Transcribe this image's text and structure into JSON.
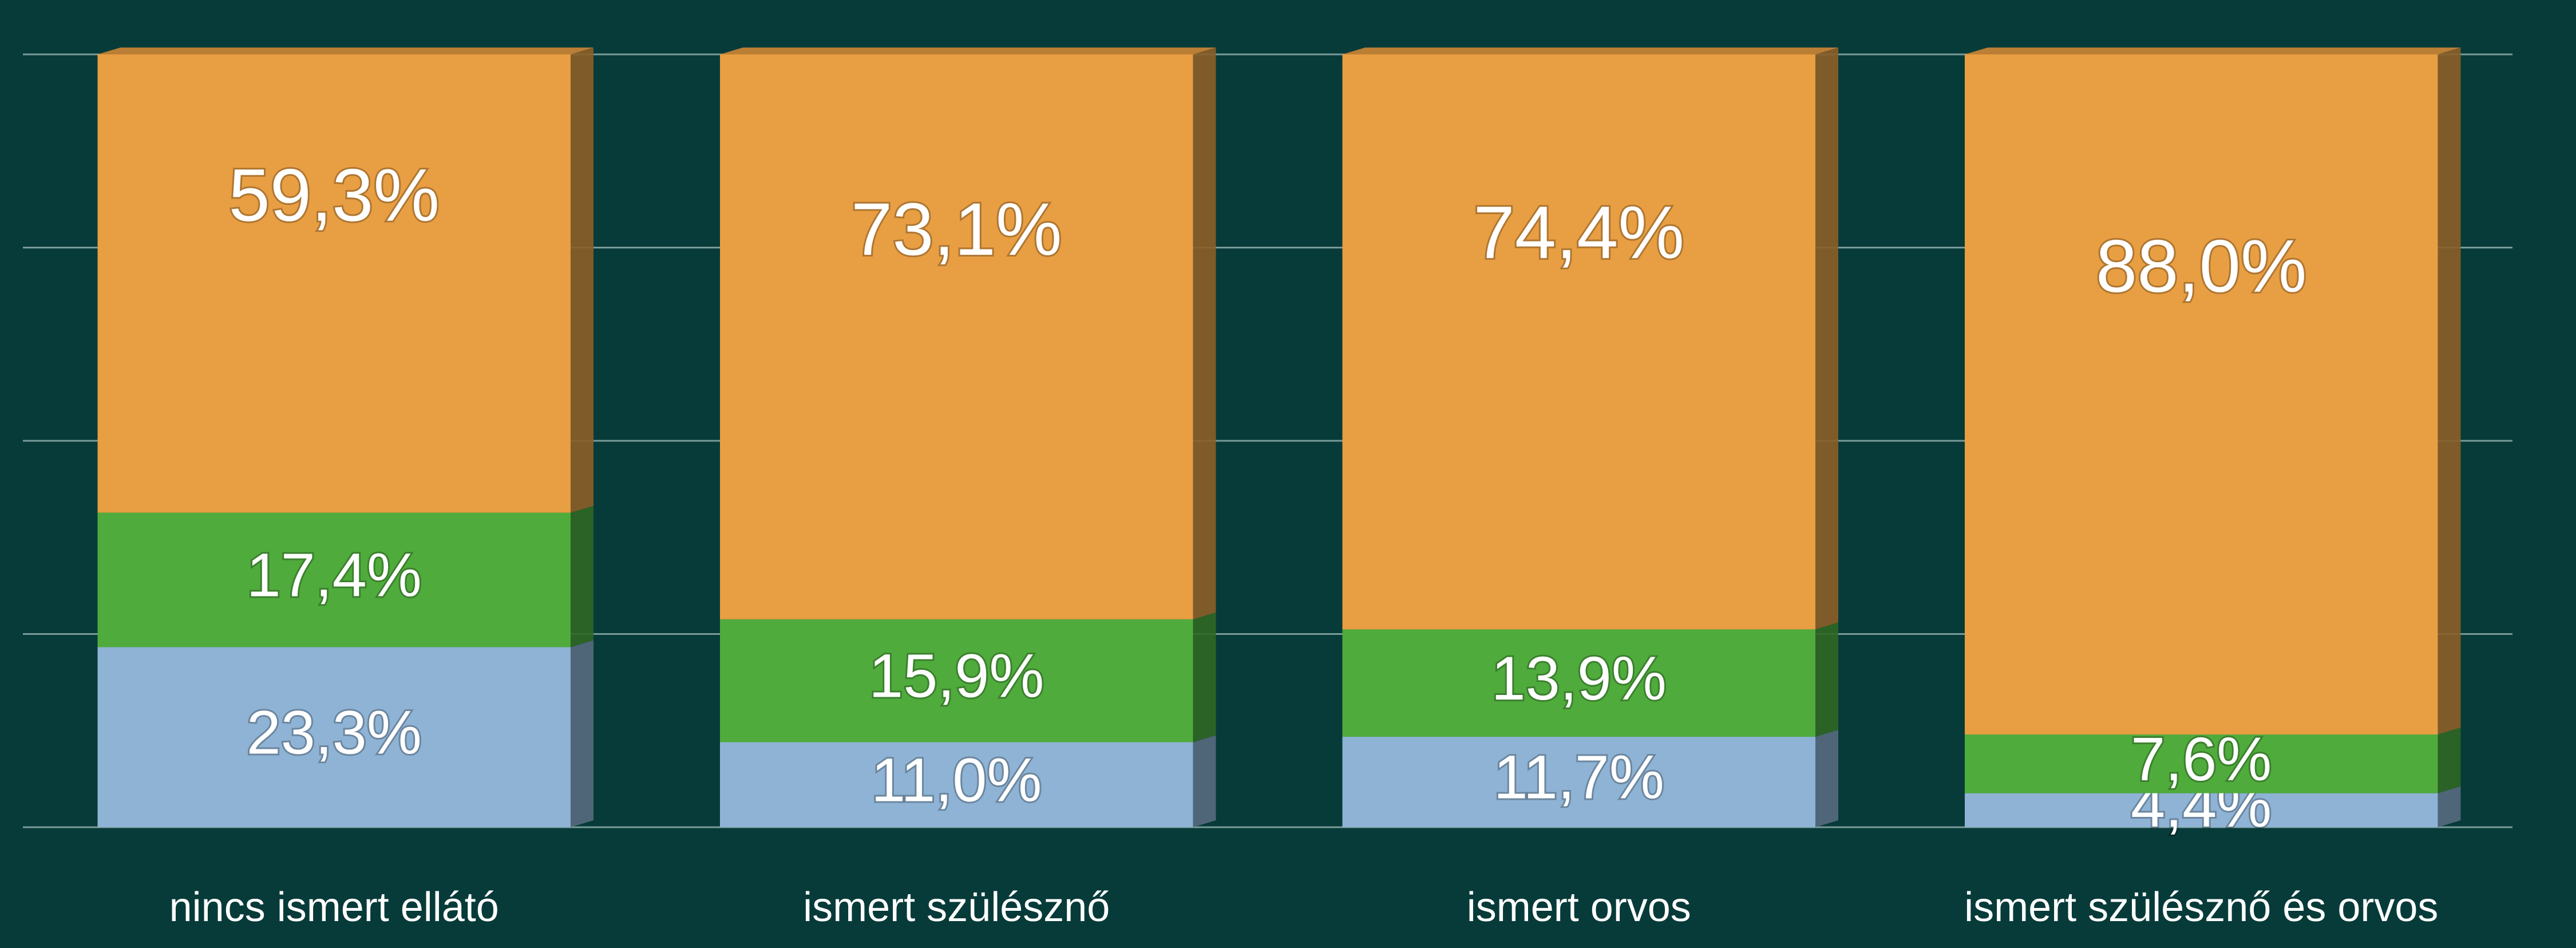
{
  "chart_data": {
    "type": "stacked_bar",
    "categories": [
      "nincs ismert ellátó",
      "ismert szülésznő",
      "ismert orvos",
      "ismert szülésznő és orvos"
    ],
    "series": [
      {
        "color": "#8fb3d4",
        "values": [
          23.3,
          11.0,
          11.7,
          4.4
        ],
        "value_labels": [
          "23,3%",
          "11,0%",
          "11,7%",
          "4,4%"
        ]
      },
      {
        "color": "#4fab3c",
        "values": [
          17.4,
          15.9,
          13.9,
          7.6
        ],
        "value_labels": [
          "17,4%",
          "15,9%",
          "13,9%",
          "7,6%"
        ]
      },
      {
        "color": "#e89e42",
        "values": [
          59.3,
          73.1,
          74.4,
          88.0
        ],
        "value_labels": [
          "59,3%",
          "73,1%",
          "74,4%",
          "88,0%"
        ]
      }
    ],
    "ylim": [
      0,
      100
    ],
    "yticks": [
      0,
      25,
      50,
      75,
      100
    ],
    "grid": true
  }
}
